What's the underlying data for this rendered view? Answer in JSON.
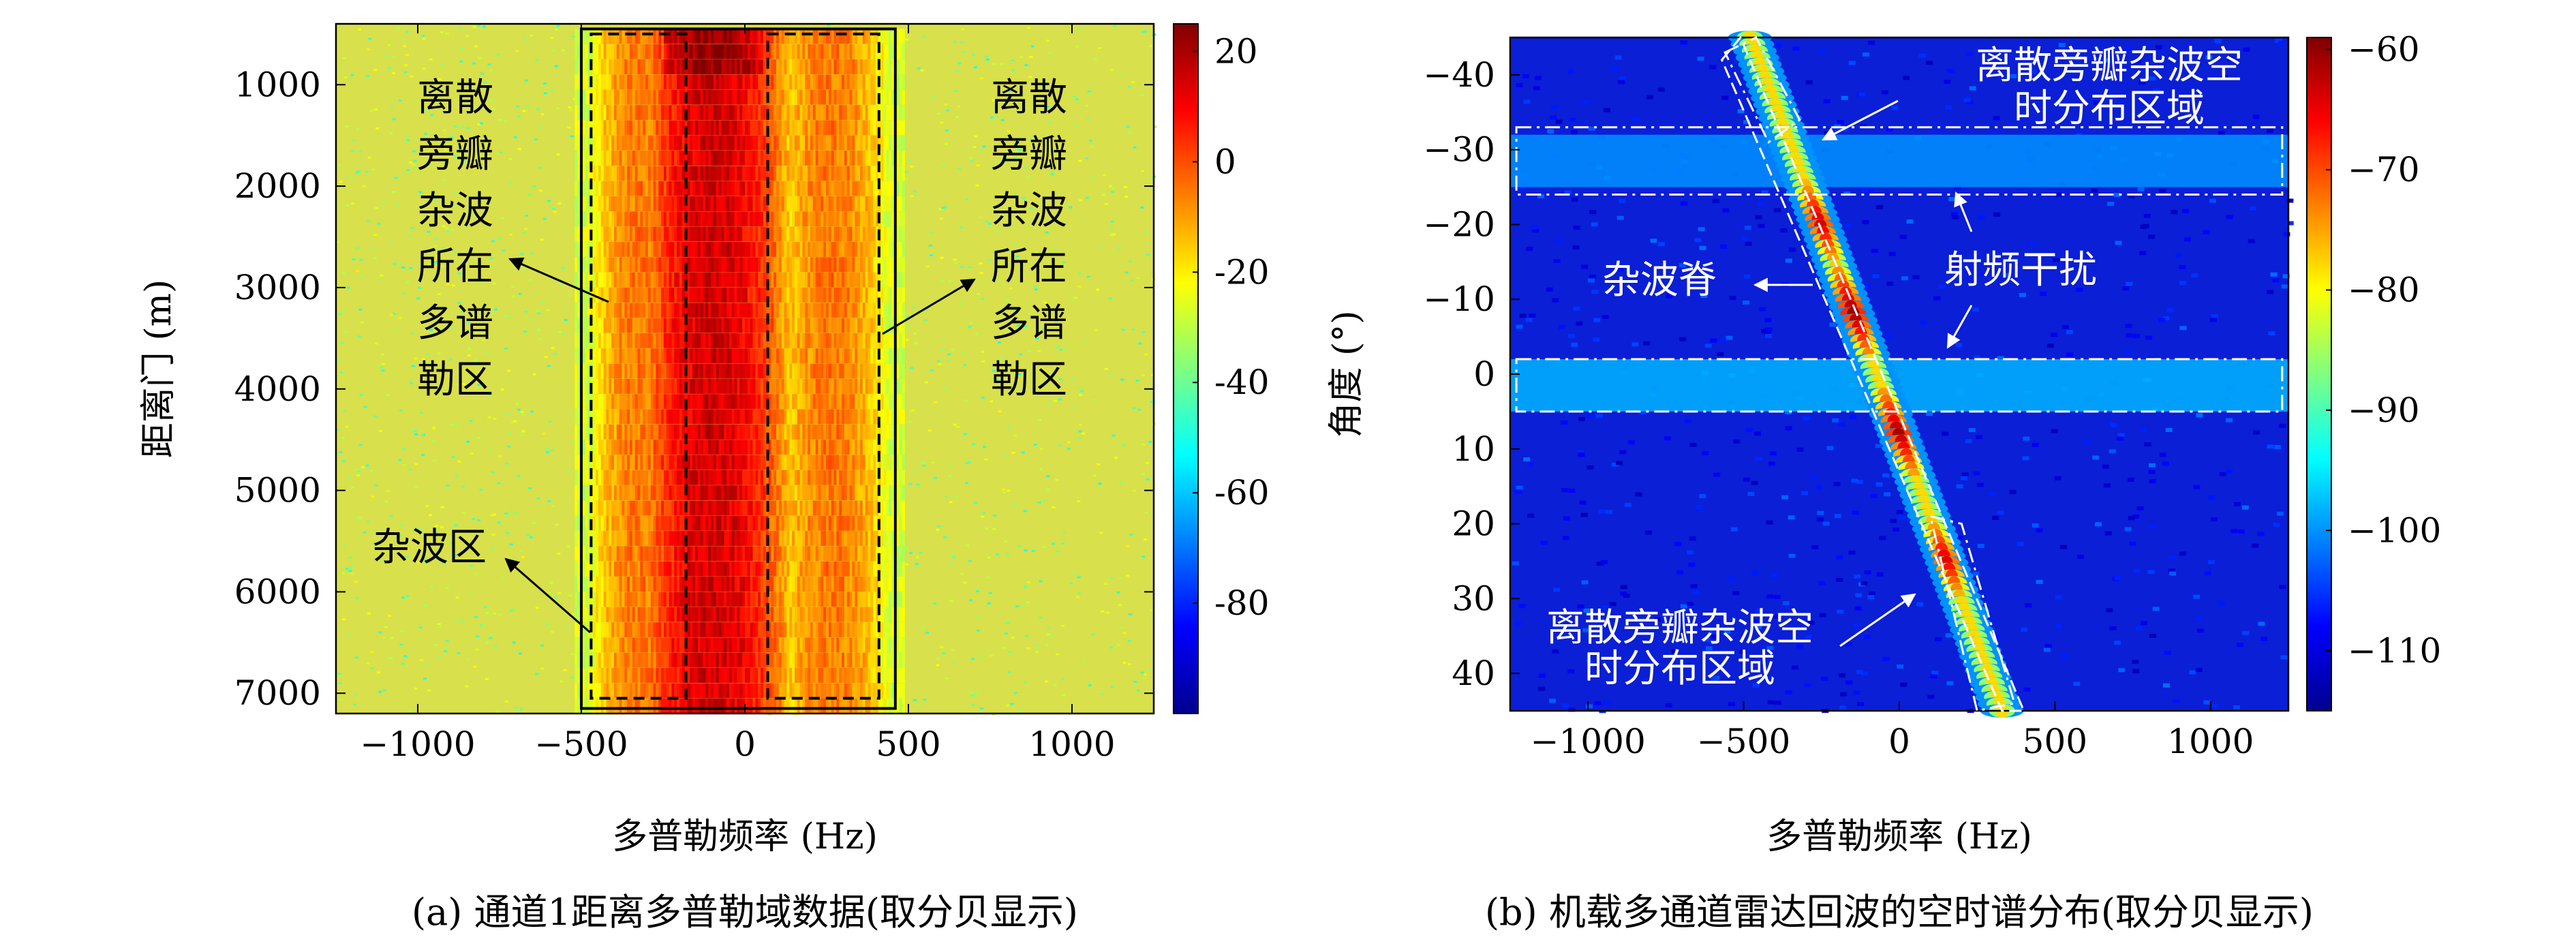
{
  "chart_data": [
    {
      "panel": "a",
      "type": "heatmap",
      "caption": "(a) 通道1距离多普勒域数据(取分贝显示)",
      "xlabel": "多普勒频率 (Hz)",
      "ylabel": "距离门 (m)",
      "xlim": [
        -1250,
        1250
      ],
      "ylim": [
        7200,
        400
      ],
      "x_ticks": [
        -1000,
        -500,
        0,
        500,
        1000
      ],
      "x_tick_labels": [
        "−1000",
        "−500",
        "0",
        "500",
        "1000"
      ],
      "y_ticks": [
        1000,
        2000,
        3000,
        4000,
        5000,
        6000,
        7000
      ],
      "y_tick_labels": [
        "1000",
        "2000",
        "3000",
        "4000",
        "5000",
        "6000",
        "7000"
      ],
      "colorbar": {
        "range": [
          -100,
          25
        ],
        "ticks": [
          20,
          0,
          -20,
          -40,
          -60,
          -80
        ],
        "tick_labels": [
          "20",
          "0",
          "-20",
          "-40",
          "-60",
          "-80"
        ],
        "colormap": "jet"
      },
      "background_level_db": -35,
      "features": [
        {
          "name": "main-clutter-band",
          "x_range": [
            -300,
            100
          ],
          "peak_db": 15
        },
        {
          "name": "sidelobe-band-left",
          "x_range": [
            -480,
            -170
          ],
          "peak_db": -5
        },
        {
          "name": "sidelobe-band-right",
          "x_range": [
            80,
            440
          ],
          "peak_db": -5
        }
      ],
      "boxes": [
        {
          "name": "outer-solid-box",
          "x": [
            -500,
            460
          ],
          "y": [
            450,
            7150
          ],
          "style": "solid"
        },
        {
          "name": "left-dashed-box",
          "x": [
            -470,
            -180
          ],
          "y": [
            500,
            7050
          ],
          "style": "dashed"
        },
        {
          "name": "right-dashed-box",
          "x": [
            70,
            410
          ],
          "y": [
            500,
            7050
          ],
          "style": "dashed"
        }
      ],
      "annotations": [
        {
          "name": "left-sidelobe-label",
          "lines": [
            "离散",
            "旁瓣",
            "杂波",
            "所在",
            "多谱",
            "勒区"
          ]
        },
        {
          "name": "right-sidelobe-label",
          "lines": [
            "离散",
            "旁瓣",
            "杂波",
            "所在",
            "多谱",
            "勒区"
          ]
        },
        {
          "name": "clutter-region-label",
          "lines": [
            "杂波区"
          ]
        }
      ]
    },
    {
      "panel": "b",
      "type": "heatmap",
      "caption": "(b) 机载多通道雷达回波的空时谱分布(取分贝显示)",
      "xlabel": "多普勒频率 (Hz)",
      "ylabel": "角度 (°)",
      "xlim": [
        -1250,
        1250
      ],
      "ylim": [
        -45,
        45
      ],
      "x_ticks": [
        -1000,
        -500,
        0,
        500,
        1000
      ],
      "x_tick_labels": [
        "−1000",
        "−500",
        "0",
        "500",
        "1000"
      ],
      "y_ticks": [
        -40,
        -30,
        -20,
        -10,
        0,
        10,
        20,
        30,
        40
      ],
      "y_tick_labels": [
        "−40",
        "−30",
        "−20",
        "−10",
        "0",
        "10",
        "20",
        "30",
        "40"
      ],
      "colorbar": {
        "range": [
          -115,
          -59
        ],
        "ticks": [
          -60,
          -70,
          -80,
          -90,
          -100,
          -110
        ],
        "tick_labels": [
          "−60",
          "−70",
          "−80",
          "−90",
          "−100",
          "−110"
        ],
        "colormap": "jet"
      },
      "background_level_db": -112,
      "clutter_ridge": {
        "start": [
          -480,
          -45
        ],
        "end": [
          330,
          45
        ],
        "peak_db": -60
      },
      "rf_interference_bands": [
        {
          "angle_range": [
            -32,
            -25
          ],
          "level_db": -100
        },
        {
          "angle_range": [
            -2,
            5
          ],
          "level_db": -98
        }
      ],
      "boxes": [
        {
          "name": "ridge-upper-box",
          "style": "dash-dot",
          "corners": [
            [
              -560,
              -43
            ],
            [
              -460,
              -45
            ],
            [
              -320,
              -34
            ],
            [
              -420,
              -31
            ]
          ]
        },
        {
          "name": "ridge-lower-box",
          "style": "dash-dot",
          "corners": [
            [
              100,
              19
            ],
            [
              200,
              20
            ],
            [
              370,
              44
            ],
            [
              250,
              45
            ]
          ]
        },
        {
          "name": "rf-band-box-upper",
          "style": "dash-dot",
          "x": [
            -1230,
            1230
          ],
          "y": [
            -33,
            -24
          ]
        },
        {
          "name": "rf-band-box-lower",
          "style": "dash-dot",
          "x": [
            -1230,
            1230
          ],
          "y": [
            -2,
            5
          ]
        },
        {
          "name": "ridge-dashed-envelope",
          "style": "dashed",
          "corners": [
            [
              -570,
              -42
            ],
            [
              -510,
              -45
            ],
            [
              400,
              45
            ],
            [
              330,
              45
            ]
          ]
        }
      ],
      "annotations": [
        {
          "name": "upper-sidelobe-label",
          "lines": [
            "离散旁瓣杂波空",
            "时分布区域"
          ]
        },
        {
          "name": "lower-sidelobe-label",
          "lines": [
            "离散旁瓣杂波空",
            "时分布区域"
          ]
        },
        {
          "name": "clutter-ridge-label",
          "lines": [
            "杂波脊"
          ]
        },
        {
          "name": "rf-interference-label",
          "lines": [
            "射频干扰"
          ]
        }
      ]
    }
  ]
}
